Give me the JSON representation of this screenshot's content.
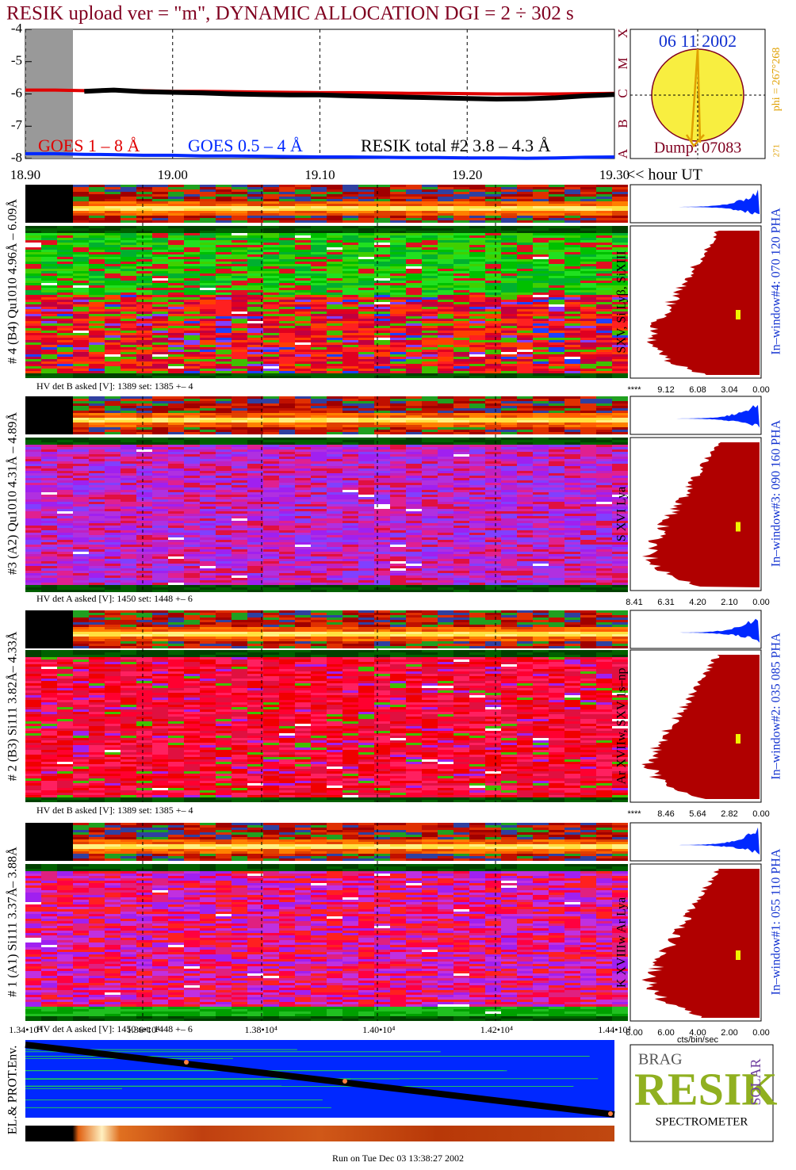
{
  "header": {
    "title": "RESIK upload ver = \"m\", DYNAMIC ALLOCATION  DGI =   2 ÷ 302 s"
  },
  "chart_data": {
    "type": "line",
    "x": [
      18.9,
      18.92,
      18.94,
      18.96,
      18.98,
      19.0,
      19.02,
      19.04,
      19.06,
      19.08,
      19.1,
      19.12,
      19.14,
      19.16,
      19.18,
      19.2,
      19.22,
      19.24,
      19.26,
      19.28,
      19.3
    ],
    "series": [
      {
        "name": "GOES 1 – 8 Å",
        "color": "#e00000",
        "values": [
          -5.88,
          -5.88,
          -5.9,
          -5.9,
          -5.9,
          -5.92,
          -5.92,
          -5.93,
          -5.94,
          -5.95,
          -5.96,
          -5.96,
          -5.97,
          -5.98,
          -5.98,
          -5.99,
          -6.0,
          -6.0,
          -6.0,
          -5.99,
          -5.98
        ]
      },
      {
        "name": "GOES 0.5 – 4 Å",
        "color": "#0028ff",
        "values": [
          -7.85,
          -7.85,
          -7.87,
          -7.88,
          -7.9,
          -7.9,
          -7.92,
          -7.92,
          -7.93,
          -7.94,
          -7.95,
          -7.95,
          -7.96,
          -7.97,
          -7.97,
          -7.98,
          -7.98,
          -7.99,
          -7.98,
          -7.96,
          -7.95
        ]
      },
      {
        "name": "RESIK total #2  3.8 – 4.3 Å",
        "color": "#000000",
        "values": [
          null,
          null,
          -5.92,
          -5.88,
          -5.93,
          -5.95,
          -5.97,
          -6.0,
          -6.02,
          -6.03,
          -6.03,
          -6.06,
          -6.08,
          -6.1,
          -6.12,
          -6.14,
          -6.16,
          -6.15,
          -6.12,
          -6.06,
          -6.02
        ]
      }
    ],
    "xlim": [
      18.9,
      19.3
    ],
    "xticks": [
      {
        "value": 18.9,
        "label": "18.90"
      },
      {
        "value": 19.0,
        "label": "19.00"
      },
      {
        "value": 19.1,
        "label": "19.10"
      },
      {
        "value": 19.2,
        "label": "19.20"
      },
      {
        "value": 19.3,
        "label": "19.30"
      }
    ],
    "xlabel": "<< hour UT",
    "ylim": [
      -8,
      -4
    ],
    "yticks": [
      -8,
      -7,
      -6,
      -5,
      -4
    ],
    "grid": true
  },
  "sun": {
    "date": "06 11 2002",
    "dump": "Dump: 07083",
    "classes": [
      "X",
      "M",
      "C",
      "B",
      "A"
    ],
    "phi": "phi = 267°268",
    "bottom": "271"
  },
  "panels": [
    {
      "label": "# 4 (B4) Qu1010 4.96Å – 6.09Å",
      "hv": "HV det B asked [V]:  1389 set:  1385 +–    4",
      "lines": "SXV, Si Lyβ, SiXIII",
      "window": "In–window#4:  070 120 PHA",
      "ticks": [
        "****",
        "9.12",
        "6.08",
        "3.04",
        "0.00"
      ]
    },
    {
      "label": "#3 (A2) Qu1010  4.31Å – 4.89Å",
      "hv": "HV det A asked [V]:  1450 set:  1448 +–    6",
      "lines": "S XVI Lya",
      "window": "In–window#3:  090 160 PHA",
      "ticks": [
        "8.41",
        "6.31",
        "4.20",
        "2.10",
        "0.00"
      ]
    },
    {
      "label": "# 2 (B3) Si111  3.82Å– 4.33Å",
      "hv": "HV det B asked [V]:  1389 set:  1385 +–    4",
      "lines": "Ar XVIIw,  SXV 1s–np",
      "window": "In–window#2:  035 085 PHA",
      "ticks": [
        "****",
        "8.46",
        "5.64",
        "2.82",
        "0.00"
      ]
    },
    {
      "label": "# 1 (A1) Si111  3.37Å– 3.88Å",
      "hv": "HV det A asked [V]:  1450 set:  1448 +–    6",
      "lines": "K XVIIIw  Ar Lya",
      "window": "In–window#1:  055 110 PHA",
      "ticks": [
        "8.00",
        "6.00",
        "4.00",
        "2.00",
        "0.00"
      ],
      "unit": "cts/bin/sec"
    }
  ],
  "env": {
    "label": "EL.& PROT.Env.",
    "ticks": [
      "1.34•10⁴",
      "1.36•10⁴",
      "1.38•10⁴",
      "1.40•10⁴",
      "1.42•10⁴",
      "1.44•10⁴"
    ]
  },
  "logo": {
    "top": "BRAG",
    "main": "RESIK",
    "side": "SOLAR",
    "bottom": "SPECTROMETER"
  },
  "footer": "Run on Tue Dec 03 13:38:27 2002"
}
